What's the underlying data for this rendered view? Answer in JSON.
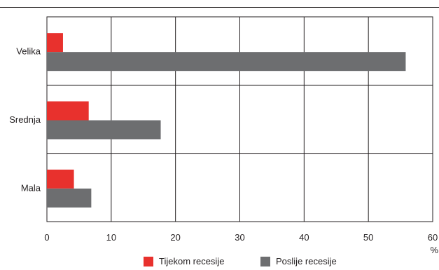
{
  "chart_data": {
    "type": "bar",
    "orientation": "horizontal",
    "categories": [
      "Velika",
      "Srednja",
      "Mala"
    ],
    "series": [
      {
        "name": "Tijekom recesije",
        "color": "#e8312d",
        "values": [
          2.5,
          6.5,
          4.2
        ]
      },
      {
        "name": "Poslije recesije",
        "color": "#6d6e70",
        "values": [
          55.8,
          17.7,
          6.9
        ]
      }
    ],
    "xlim": [
      0,
      60
    ],
    "xticks": [
      0,
      10,
      20,
      30,
      40,
      50,
      60
    ],
    "x_unit": "%",
    "grid": true,
    "legend_position": "bottom"
  }
}
